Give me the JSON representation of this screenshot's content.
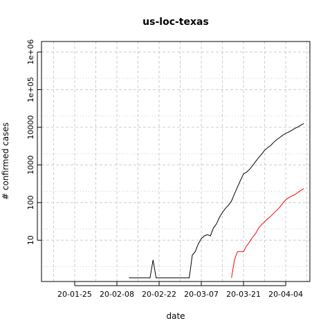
{
  "chart_data": {
    "type": "line",
    "title": "us-loc-texas",
    "xlabel": "date",
    "ylabel": "# confirmed cases",
    "x_tick_labels": [
      "20-01-25",
      "20-02-08",
      "20-02-22",
      "20-03-07",
      "20-03-21",
      "20-04-04"
    ],
    "y_tick_labels": [
      "10",
      "100",
      "1000",
      "10000",
      "1e+05",
      "1e+06"
    ],
    "y_scale": "log",
    "xlim": [
      "2020-01-14",
      "2020-04-12"
    ],
    "ylim": [
      0.8,
      1900000
    ],
    "grid": true,
    "colors": {
      "confirmed": "#000000",
      "deaths": "#ff0000",
      "grid": "#cccccc"
    },
    "series": [
      {
        "key": "confirmed",
        "color": "#000000",
        "points": [
          [
            "2020-02-12",
            1
          ],
          [
            "2020-02-13",
            1
          ],
          [
            "2020-02-14",
            1
          ],
          [
            "2020-02-15",
            1
          ],
          [
            "2020-02-16",
            1
          ],
          [
            "2020-02-17",
            1
          ],
          [
            "2020-02-18",
            1
          ],
          [
            "2020-02-19",
            1
          ],
          [
            "2020-02-20",
            3
          ],
          [
            "2020-02-21",
            1
          ],
          [
            "2020-02-22",
            1
          ],
          [
            "2020-02-23",
            1
          ],
          [
            "2020-02-24",
            1
          ],
          [
            "2020-02-25",
            1
          ],
          [
            "2020-02-26",
            1
          ],
          [
            "2020-02-27",
            1
          ],
          [
            "2020-02-28",
            1
          ],
          [
            "2020-02-29",
            1
          ],
          [
            "2020-03-01",
            1
          ],
          [
            "2020-03-02",
            1
          ],
          [
            "2020-03-03",
            1
          ],
          [
            "2020-03-04",
            4
          ],
          [
            "2020-03-05",
            5
          ],
          [
            "2020-03-06",
            8
          ],
          [
            "2020-03-07",
            11
          ],
          [
            "2020-03-08",
            13
          ],
          [
            "2020-03-09",
            14
          ],
          [
            "2020-03-10",
            13
          ],
          [
            "2020-03-11",
            21
          ],
          [
            "2020-03-12",
            27
          ],
          [
            "2020-03-13",
            40
          ],
          [
            "2020-03-14",
            55
          ],
          [
            "2020-03-15",
            70
          ],
          [
            "2020-03-16",
            85
          ],
          [
            "2020-03-17",
            110
          ],
          [
            "2020-03-18",
            170
          ],
          [
            "2020-03-19",
            260
          ],
          [
            "2020-03-20",
            390
          ],
          [
            "2020-03-21",
            580
          ],
          [
            "2020-03-22",
            640
          ],
          [
            "2020-03-23",
            760
          ],
          [
            "2020-03-24",
            960
          ],
          [
            "2020-03-25",
            1230
          ],
          [
            "2020-03-26",
            1560
          ],
          [
            "2020-03-27",
            1930
          ],
          [
            "2020-03-28",
            2450
          ],
          [
            "2020-03-29",
            2870
          ],
          [
            "2020-03-30",
            3270
          ],
          [
            "2020-03-31",
            3980
          ],
          [
            "2020-04-01",
            4670
          ],
          [
            "2020-04-02",
            5330
          ],
          [
            "2020-04-03",
            6150
          ],
          [
            "2020-04-04",
            6900
          ],
          [
            "2020-04-05",
            7500
          ],
          [
            "2020-04-06",
            8300
          ],
          [
            "2020-04-07",
            9300
          ],
          [
            "2020-04-08",
            10200
          ],
          [
            "2020-04-09",
            11400
          ],
          [
            "2020-04-10",
            12500
          ]
        ]
      },
      {
        "key": "deaths",
        "color": "#ff0000",
        "points": [
          [
            "2020-03-17",
            1
          ],
          [
            "2020-03-18",
            3
          ],
          [
            "2020-03-19",
            5
          ],
          [
            "2020-03-20",
            5
          ],
          [
            "2020-03-21",
            5
          ],
          [
            "2020-03-22",
            7
          ],
          [
            "2020-03-23",
            9
          ],
          [
            "2020-03-24",
            12
          ],
          [
            "2020-03-25",
            15
          ],
          [
            "2020-03-26",
            21
          ],
          [
            "2020-03-27",
            26
          ],
          [
            "2020-03-28",
            31
          ],
          [
            "2020-03-29",
            37
          ],
          [
            "2020-03-30",
            43
          ],
          [
            "2020-03-31",
            52
          ],
          [
            "2020-04-01",
            62
          ],
          [
            "2020-04-02",
            75
          ],
          [
            "2020-04-03",
            96
          ],
          [
            "2020-04-04",
            118
          ],
          [
            "2020-04-05",
            135
          ],
          [
            "2020-04-06",
            150
          ],
          [
            "2020-04-07",
            162
          ],
          [
            "2020-04-08",
            185
          ],
          [
            "2020-04-09",
            210
          ],
          [
            "2020-04-10",
            235
          ]
        ]
      }
    ]
  }
}
